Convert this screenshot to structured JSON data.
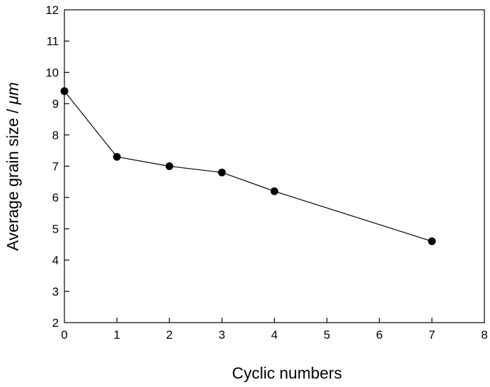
{
  "chart_data": {
    "type": "line",
    "title": "",
    "xlabel": "Cyclic numbers",
    "ylabel_prefix": "Average grain size / ",
    "ylabel_unit": "μm",
    "xlim": [
      0,
      8
    ],
    "ylim": [
      2,
      12
    ],
    "x_ticks": [
      "0",
      "1",
      "2",
      "3",
      "4",
      "5",
      "6",
      "7",
      "8"
    ],
    "y_ticks": [
      "2",
      "3",
      "4",
      "5",
      "6",
      "7",
      "8",
      "9",
      "10",
      "11",
      "12"
    ],
    "grid": false,
    "legend": "none",
    "series": [
      {
        "x": [
          0,
          1,
          2,
          3,
          4,
          7
        ],
        "y": [
          9.4,
          7.3,
          7.0,
          6.8,
          6.2,
          4.6
        ]
      }
    ],
    "colors": {
      "line": "#000000",
      "marker": "#000000",
      "axis": "#000000"
    }
  }
}
